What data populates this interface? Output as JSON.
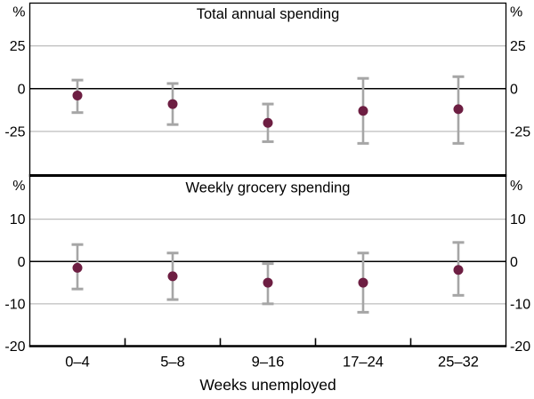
{
  "chart_data": [
    {
      "type": "scatter",
      "panel": "top",
      "title": "Total annual spending",
      "unit_label": "%",
      "xlabel": "Weeks unemployed",
      "categories": [
        "0–4",
        "5–8",
        "9–16",
        "17–24",
        "25–32"
      ],
      "values": [
        -4,
        -9,
        -20,
        -13,
        -12
      ],
      "ci_high": [
        5,
        3,
        -9,
        6,
        7
      ],
      "ci_low": [
        -14,
        -21,
        -31,
        -32,
        -32
      ],
      "ylim": [
        -50,
        50
      ],
      "yticks": [
        25,
        0,
        -25
      ],
      "grid": true,
      "legend": "none"
    },
    {
      "type": "scatter",
      "panel": "bottom",
      "title": "Weekly grocery spending",
      "unit_label": "%",
      "xlabel": "Weeks unemployed",
      "categories": [
        "0–4",
        "5–8",
        "9–16",
        "17–24",
        "25–32"
      ],
      "values": [
        -1.5,
        -3.5,
        -5,
        -5,
        -2
      ],
      "ci_high": [
        4,
        2,
        -0.5,
        2,
        4.5
      ],
      "ci_low": [
        -6.5,
        -9,
        -10,
        -12,
        -8
      ],
      "ylim": [
        -20,
        20
      ],
      "yticks": [
        10,
        0,
        -10,
        -20
      ],
      "grid": true,
      "legend": "none"
    }
  ],
  "colors": {
    "dot": "#6d1e42",
    "error_bar": "#a6a6a6",
    "gridline": "#bdbdbd",
    "axis": "#000000",
    "background": "#ffffff"
  }
}
